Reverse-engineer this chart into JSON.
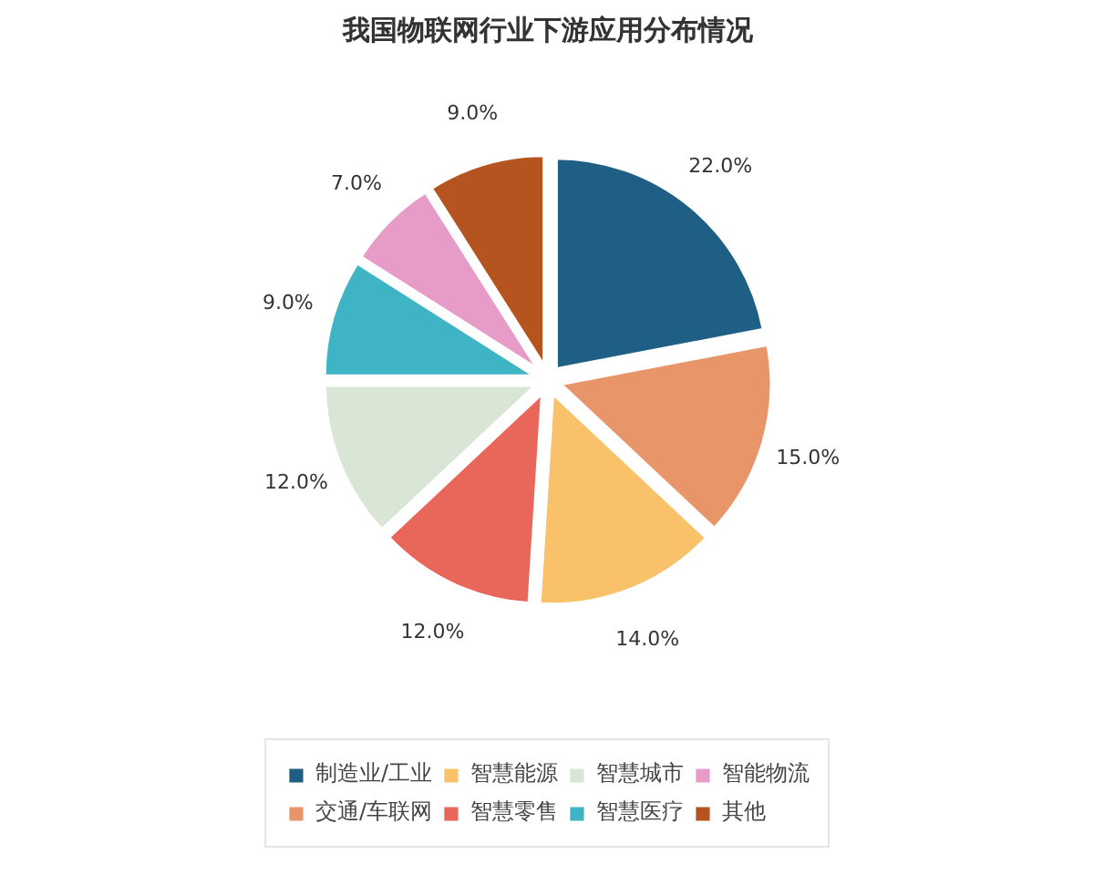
{
  "chart_data": {
    "type": "pie",
    "title": "我国物联网行业下游应用分布情况",
    "categories": [
      "制造业/工业",
      "交通/车联网",
      "智慧能源",
      "智慧零售",
      "智慧城市",
      "智慧医疗",
      "智能物流",
      "其他"
    ],
    "values": [
      22,
      15,
      14,
      12,
      12,
      9,
      7,
      9
    ],
    "value_labels": [
      "22.0%",
      "15.0%",
      "14.0%",
      "12.0%",
      "12.0%",
      "9.0%",
      "7.0%",
      "9.0%"
    ],
    "colors": [
      "#1f5f85",
      "#e8956a",
      "#f9c26a",
      "#e8675a",
      "#d9e6d6",
      "#3fb4c4",
      "#e79cc8",
      "#b5541f"
    ],
    "legend": "bottom"
  }
}
